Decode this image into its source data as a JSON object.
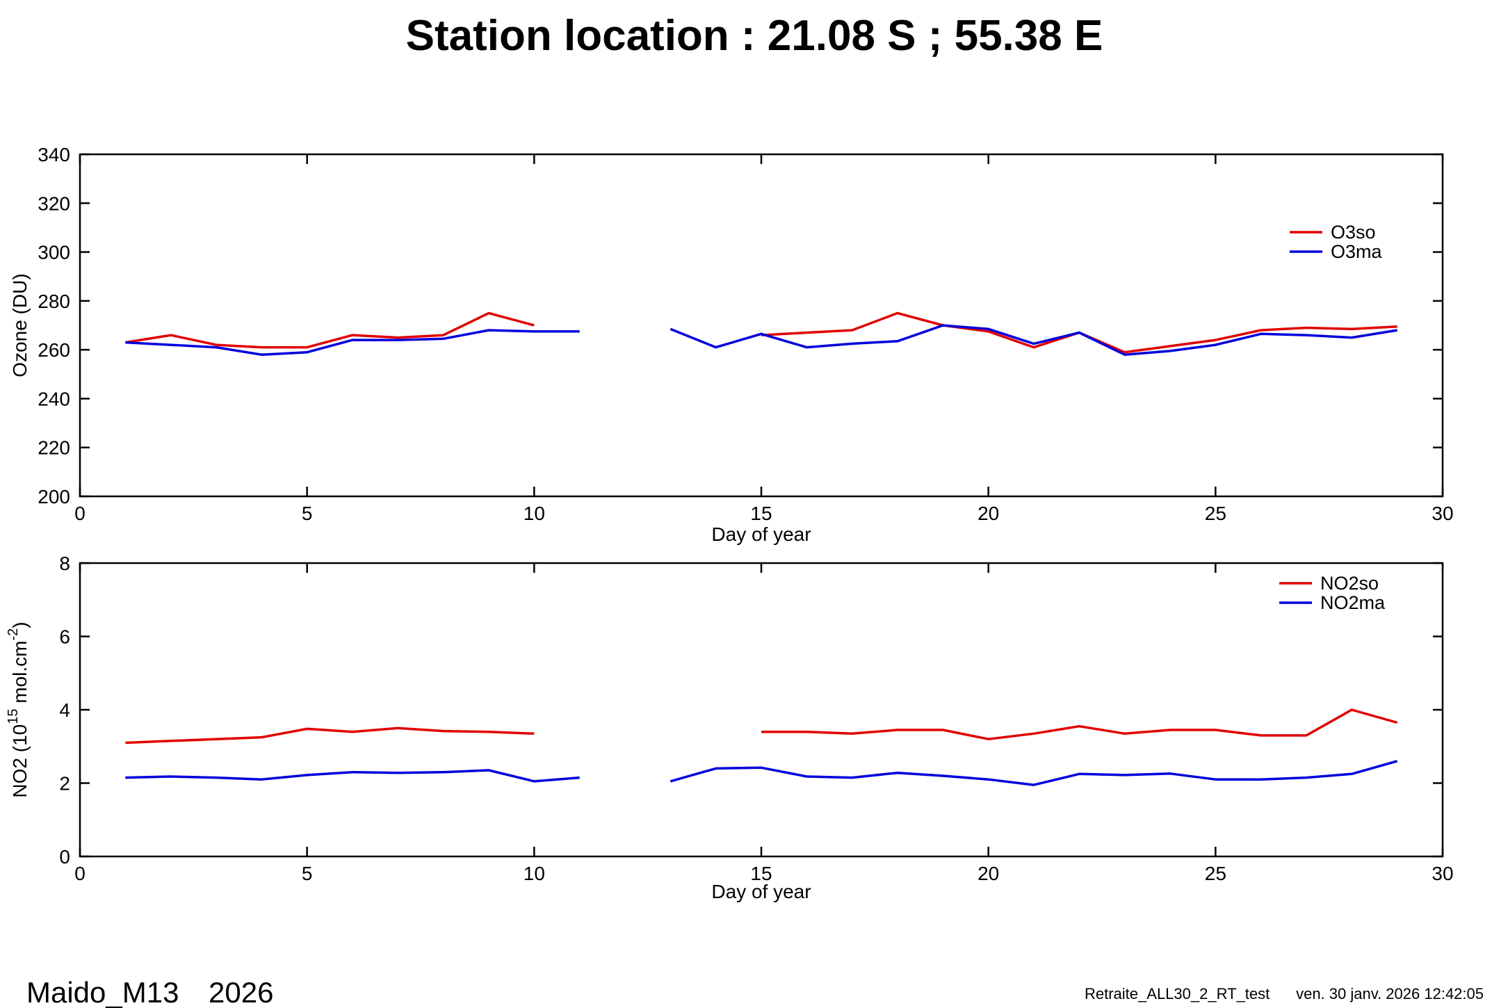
{
  "title": "Station location : 21.08 S ; 55.38 E",
  "colors": {
    "series_so": "#e10000",
    "series_ma": "#0000dd",
    "axis": "#000000",
    "background": "#ffffff"
  },
  "footer": {
    "station": "Maido_M13",
    "year": "2026",
    "process_label": "Retraite_ALL30_2_RT_test",
    "datetime": "ven. 30 janv. 2026 12:42:05"
  },
  "chart_data": [
    {
      "type": "line",
      "title": "",
      "xlabel": "Day of year",
      "ylabel": "Ozone (DU)",
      "xlim": [
        0,
        30
      ],
      "ylim": [
        200,
        340
      ],
      "xticks": [
        0,
        5,
        10,
        15,
        20,
        25,
        30
      ],
      "yticks": [
        200,
        220,
        240,
        260,
        280,
        300,
        320,
        340
      ],
      "grid": false,
      "legend_position": "top-right",
      "x": [
        1,
        2,
        3,
        4,
        5,
        6,
        7,
        8,
        9,
        10,
        11,
        12,
        13,
        14,
        15,
        16,
        17,
        18,
        19,
        20,
        21,
        22,
        23,
        24,
        25,
        26,
        27,
        28,
        29
      ],
      "series": [
        {
          "name": "O3so",
          "color": "#e10000",
          "values": [
            263,
            266,
            262,
            261,
            261,
            266,
            265,
            266,
            275,
            270,
            null,
            null,
            null,
            null,
            266,
            267,
            268,
            275,
            270,
            267.5,
            261,
            267,
            259,
            261.5,
            264,
            268,
            269,
            268.5,
            269.5
          ]
        },
        {
          "name": "O3ma",
          "color": "#0000dd",
          "values": [
            263,
            262,
            261,
            258,
            259,
            264,
            264,
            264.5,
            268,
            267.5,
            267.5,
            null,
            268.5,
            261,
            266.5,
            261,
            262.5,
            263.5,
            270,
            268.5,
            262.5,
            267,
            258,
            259.5,
            262,
            266.5,
            266,
            265,
            268
          ]
        }
      ]
    },
    {
      "type": "line",
      "title": "",
      "xlabel": "Day of year",
      "ylabel": "NO2 (10^15 mol.cm^-2)",
      "ylabel_parts": [
        {
          "t": "NO2 (10",
          "sup": false
        },
        {
          "t": "15",
          "sup": true
        },
        {
          "t": "  mol.cm",
          "sup": false
        },
        {
          "t": "-2",
          "sup": true
        },
        {
          "t": ")",
          "sup": false
        }
      ],
      "xlim": [
        0,
        30
      ],
      "ylim": [
        0,
        8
      ],
      "xticks": [
        0,
        5,
        10,
        15,
        20,
        25,
        30
      ],
      "yticks": [
        0,
        2,
        4,
        6,
        8
      ],
      "grid": false,
      "legend_position": "top-right",
      "x": [
        1,
        2,
        3,
        4,
        5,
        6,
        7,
        8,
        9,
        10,
        11,
        12,
        13,
        14,
        15,
        16,
        17,
        18,
        19,
        20,
        21,
        22,
        23,
        24,
        25,
        26,
        27,
        28,
        29
      ],
      "series": [
        {
          "name": "NO2so",
          "color": "#e10000",
          "values": [
            3.1,
            3.15,
            3.2,
            3.25,
            3.48,
            3.4,
            3.5,
            3.42,
            3.4,
            3.35,
            null,
            null,
            null,
            null,
            3.4,
            3.4,
            3.35,
            3.45,
            3.45,
            3.2,
            3.35,
            3.55,
            3.35,
            3.45,
            3.45,
            3.3,
            3.3,
            4.0,
            3.65
          ]
        },
        {
          "name": "NO2ma",
          "color": "#0000dd",
          "values": [
            2.15,
            2.18,
            2.15,
            2.1,
            2.22,
            2.3,
            2.28,
            2.3,
            2.35,
            2.05,
            2.15,
            null,
            2.05,
            2.4,
            2.42,
            2.18,
            2.15,
            2.28,
            2.2,
            2.1,
            1.95,
            2.25,
            2.22,
            2.26,
            2.1,
            2.1,
            2.15,
            2.25,
            2.6
          ]
        }
      ]
    }
  ]
}
